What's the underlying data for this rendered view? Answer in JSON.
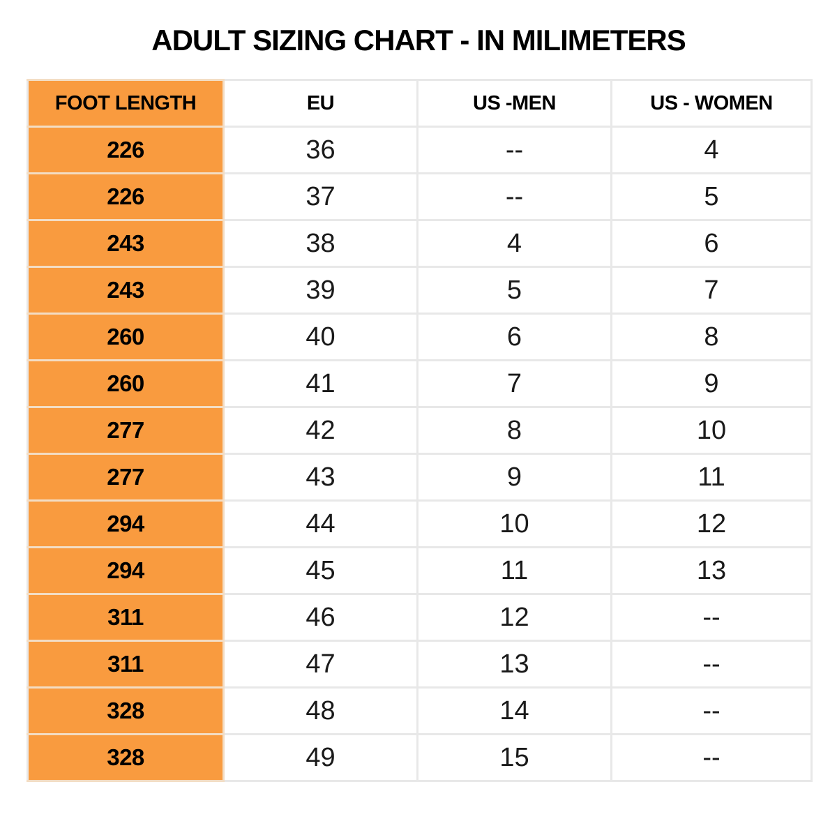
{
  "page": {
    "title": "ADULT SIZING CHART - IN MILIMETERS"
  },
  "chart_data": {
    "type": "table",
    "title": "ADULT SIZING CHART - IN MILIMETERS",
    "columns": [
      "FOOT LENGTH",
      "EU",
      "US -MEN",
      "US - WOMEN"
    ],
    "rows": [
      [
        "226",
        "36",
        "--",
        "4"
      ],
      [
        "226",
        "37",
        "--",
        "5"
      ],
      [
        "243",
        "38",
        "4",
        "6"
      ],
      [
        "243",
        "39",
        "5",
        "7"
      ],
      [
        "260",
        "40",
        "6",
        "8"
      ],
      [
        "260",
        "41",
        "7",
        "9"
      ],
      [
        "277",
        "42",
        "8",
        "10"
      ],
      [
        "277",
        "43",
        "9",
        "11"
      ],
      [
        "294",
        "44",
        "10",
        "12"
      ],
      [
        "294",
        "45",
        "11",
        "13"
      ],
      [
        "311",
        "46",
        "12",
        "--"
      ],
      [
        "311",
        "47",
        "13",
        "--"
      ],
      [
        "328",
        "48",
        "14",
        "--"
      ],
      [
        "328",
        "49",
        "15",
        "--"
      ]
    ],
    "layout": {
      "first_column_highlighted": true,
      "grid": true,
      "header_row": true
    },
    "colors": {
      "highlight_orange": "#f99b3f",
      "grid_line": "#e8e8e8",
      "text": "#141414",
      "background": "#ffffff"
    }
  }
}
